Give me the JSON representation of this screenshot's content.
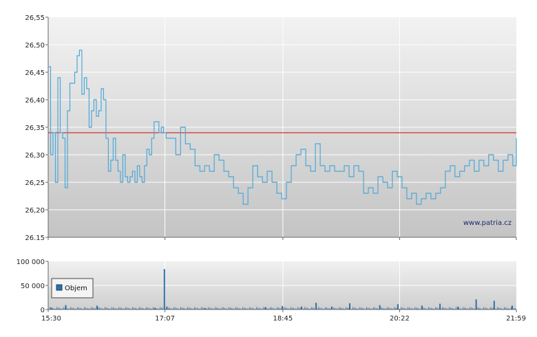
{
  "chart_data": [
    {
      "type": "line",
      "title": "",
      "xlabel": "",
      "ylabel": "",
      "ylim": [
        26.15,
        26.55
      ],
      "y_ticks": [
        "26,55",
        "26,50",
        "26,45",
        "26,40",
        "26,35",
        "26,30",
        "26,25",
        "26,20",
        "26.15"
      ],
      "reference_line": {
        "value": 26.34,
        "color": "#cc0000"
      },
      "line_color": "#4aa8d8",
      "grid": true,
      "watermark": "www.patria.cz",
      "series": [
        {
          "x": [
            "15:30",
            "15:32",
            "15:34",
            "15:36",
            "15:38",
            "15:40",
            "15:42",
            "15:44",
            "15:46",
            "15:48",
            "15:50",
            "15:52",
            "15:54",
            "15:56",
            "15:58",
            "16:00",
            "16:02",
            "16:04",
            "16:06",
            "16:08",
            "16:10",
            "16:12",
            "16:14",
            "16:16",
            "16:18",
            "16:20",
            "16:22",
            "16:24",
            "16:26",
            "16:28",
            "16:30",
            "16:32",
            "16:34",
            "16:36",
            "16:38",
            "16:40",
            "16:42",
            "16:44",
            "16:46",
            "16:48",
            "16:50",
            "16:52",
            "16:54",
            "16:56",
            "16:58",
            "17:00",
            "17:02",
            "17:04",
            "17:06",
            "17:08",
            "17:12",
            "17:16",
            "17:20",
            "17:24",
            "17:28",
            "17:32",
            "17:36",
            "17:40",
            "17:44",
            "17:48",
            "17:52",
            "17:56",
            "18:00",
            "18:04",
            "18:08",
            "18:12",
            "18:16",
            "18:20",
            "18:24",
            "18:28",
            "18:32",
            "18:36",
            "18:40",
            "18:44",
            "18:48",
            "18:52",
            "18:56",
            "19:00",
            "19:04",
            "19:08",
            "19:12",
            "19:16",
            "19:20",
            "19:24",
            "19:28",
            "19:32",
            "19:36",
            "19:40",
            "19:44",
            "19:48",
            "19:52",
            "19:56",
            "20:00",
            "20:04",
            "20:08",
            "20:12",
            "20:16",
            "20:20",
            "20:24",
            "20:28",
            "20:32",
            "20:36",
            "20:40",
            "20:44",
            "20:48",
            "20:52",
            "20:56",
            "21:00",
            "21:04",
            "21:08",
            "21:12",
            "21:16",
            "21:20",
            "21:24",
            "21:28",
            "21:32",
            "21:36",
            "21:40",
            "21:44",
            "21:48",
            "21:52",
            "21:56",
            "21:59"
          ],
          "values": [
            26.46,
            26.3,
            26.34,
            26.25,
            26.44,
            26.34,
            26.33,
            26.24,
            26.38,
            26.43,
            26.43,
            26.45,
            26.48,
            26.49,
            26.41,
            26.44,
            26.42,
            26.35,
            26.38,
            26.4,
            26.37,
            26.38,
            26.42,
            26.4,
            26.33,
            26.27,
            26.29,
            26.33,
            26.29,
            26.27,
            26.25,
            26.3,
            26.26,
            26.25,
            26.26,
            26.27,
            26.25,
            26.28,
            26.26,
            26.25,
            26.28,
            26.31,
            26.3,
            26.33,
            26.36,
            26.36,
            26.34,
            26.35,
            26.34,
            26.33,
            26.33,
            26.3,
            26.35,
            26.32,
            26.31,
            26.28,
            26.27,
            26.28,
            26.27,
            26.3,
            26.29,
            26.27,
            26.26,
            26.24,
            26.23,
            26.21,
            26.24,
            26.28,
            26.26,
            26.25,
            26.27,
            26.25,
            26.23,
            26.22,
            26.25,
            26.28,
            26.3,
            26.31,
            26.28,
            26.27,
            26.32,
            26.28,
            26.27,
            26.28,
            26.27,
            26.27,
            26.28,
            26.26,
            26.28,
            26.27,
            26.23,
            26.24,
            26.23,
            26.26,
            26.25,
            26.24,
            26.27,
            26.26,
            26.24,
            26.22,
            26.23,
            26.21,
            26.22,
            26.23,
            26.22,
            26.23,
            26.24,
            26.27,
            26.28,
            26.26,
            26.27,
            26.28,
            26.29,
            26.27,
            26.29,
            26.28,
            26.3,
            26.29,
            26.27,
            26.29,
            26.3,
            26.28,
            26.33
          ]
        }
      ]
    },
    {
      "type": "bar",
      "title": "",
      "xlabel": "",
      "ylabel": "",
      "ylim": [
        0,
        100000
      ],
      "y_ticks": [
        "100 000",
        "50 000",
        "0"
      ],
      "x_ticks": [
        "15:30",
        "17:07",
        "18:45",
        "20:22",
        "21:59"
      ],
      "legend": {
        "placement": "left",
        "entries": [
          "Objem"
        ]
      },
      "bar_color": "#2e6fa8",
      "grid": true,
      "series": [
        {
          "name": "Objem",
          "x": [
            "15:32",
            "15:44",
            "16:10",
            "16:58",
            "17:06",
            "17:08",
            "17:40",
            "18:30",
            "18:44",
            "19:00",
            "19:12",
            "19:25",
            "19:40",
            "20:05",
            "20:20",
            "20:40",
            "20:55",
            "21:10",
            "21:25",
            "21:40",
            "21:55"
          ],
          "values": [
            4000,
            9000,
            8000,
            3000,
            84000,
            6000,
            3000,
            5000,
            7000,
            6000,
            14000,
            6000,
            13000,
            9000,
            11000,
            8000,
            12000,
            6000,
            21000,
            18000,
            8000
          ]
        }
      ]
    }
  ]
}
